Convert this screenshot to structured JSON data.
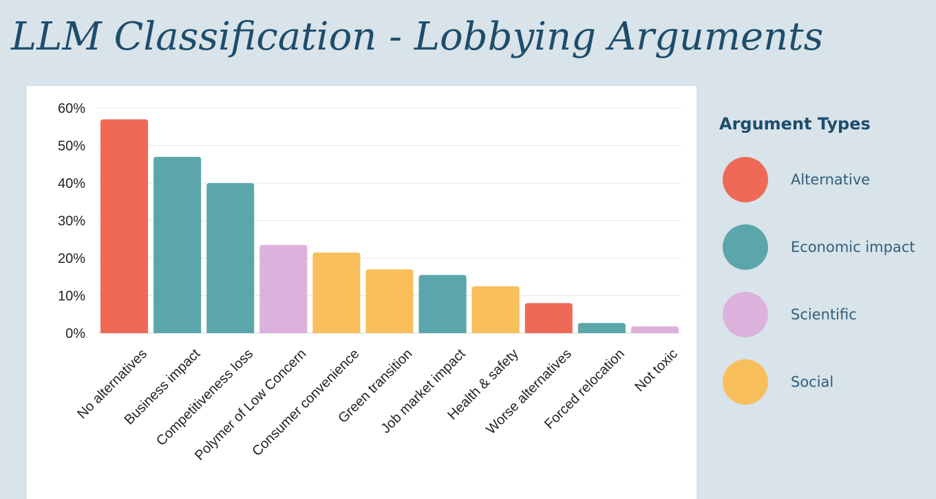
{
  "title": "LLM Classification - Lobbying Arguments",
  "legend": {
    "title": "Argument Types",
    "items": [
      {
        "label": "Alternative",
        "color": "#ee6a57"
      },
      {
        "label": "Economic impact",
        "color": "#5ba6ab"
      },
      {
        "label": "Scientific",
        "color": "#dcb2dc"
      },
      {
        "label": "Social",
        "color": "#f8bf5c"
      }
    ]
  },
  "chart_data": {
    "type": "bar",
    "categories": [
      "No alternatives",
      "Business impact",
      "Competitiveness loss",
      "Polymer of Low Concern",
      "Consumer convenience",
      "Green transition",
      "Job market impact",
      "Health & safety",
      "Worse alternatives",
      "Forced relocation",
      "Not toxic"
    ],
    "values": [
      57,
      47,
      40,
      23.5,
      21.5,
      17,
      15.5,
      12.5,
      8,
      2.7,
      1.8
    ],
    "groups": [
      "Alternative",
      "Economic impact",
      "Economic impact",
      "Scientific",
      "Social",
      "Social",
      "Economic impact",
      "Social",
      "Alternative",
      "Economic impact",
      "Scientific"
    ],
    "ylim": [
      0,
      60
    ],
    "yticks": [
      0,
      10,
      20,
      30,
      40,
      50,
      60
    ],
    "ytick_labels": [
      "0%",
      "10%",
      "20%",
      "30%",
      "40%",
      "50%",
      "60%"
    ],
    "grid": true,
    "legend_position": "right"
  }
}
